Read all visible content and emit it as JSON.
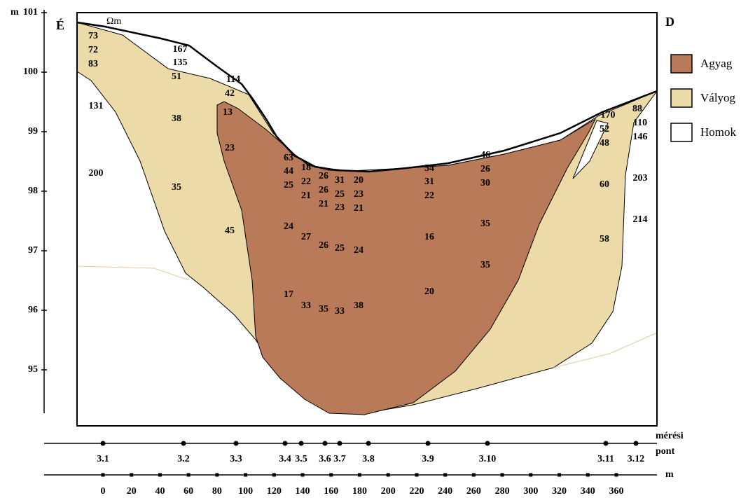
{
  "axis": {
    "unit": "m",
    "ticks": [
      "101",
      "100",
      "99",
      "98",
      "97",
      "96",
      "95"
    ]
  },
  "labels": {
    "north": "É",
    "south": "D",
    "resistivity_unit": "Ωm"
  },
  "legend": [
    {
      "label": "Agyag"
    },
    {
      "label": "Vályog"
    },
    {
      "label": "Homok"
    }
  ],
  "resistivity": [
    73,
    72,
    83,
    131,
    200,
    167,
    135,
    51,
    38,
    35,
    114,
    42,
    13,
    23,
    45,
    63,
    44,
    25,
    18,
    22,
    21,
    26,
    26,
    21,
    31,
    25,
    23,
    20,
    23,
    21,
    24,
    27,
    26,
    25,
    24,
    17,
    33,
    35,
    33,
    38,
    54,
    31,
    22,
    16,
    20,
    46,
    26,
    30,
    35,
    35,
    170,
    52,
    48,
    60,
    58,
    88,
    110,
    146,
    203,
    214
  ],
  "measuring_points": {
    "label": [
      "mérési",
      "pont"
    ],
    "points": [
      "3.1",
      "3.2",
      "3.3",
      "3.4",
      "3.5",
      "3.6",
      "3.7",
      "3.8",
      "3.9",
      "3.10",
      "3.11",
      "3.12"
    ]
  },
  "distance": {
    "unit": "m",
    "ticks": [
      "0",
      "20",
      "40",
      "60",
      "80",
      "100",
      "120",
      "140",
      "160",
      "180",
      "200",
      "220",
      "240",
      "260",
      "280",
      "300",
      "320",
      "340",
      "360"
    ]
  }
}
